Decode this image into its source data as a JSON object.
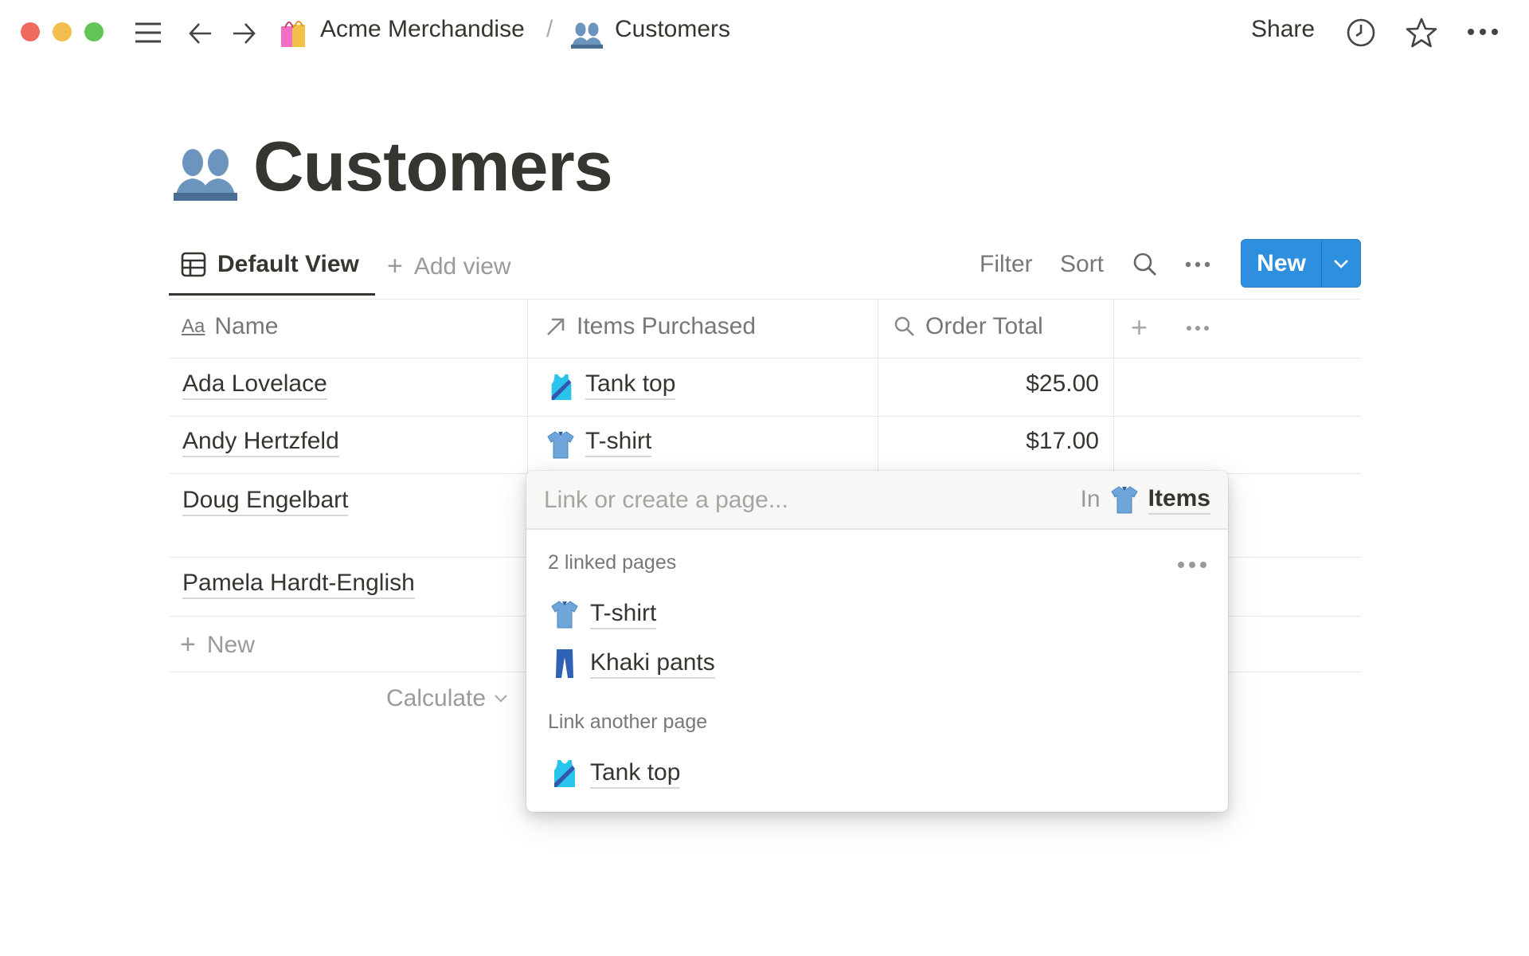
{
  "titlebar": {
    "breadcrumb": [
      {
        "label": "Acme Merchandise",
        "icon": "shopping-bags-icon"
      },
      {
        "label": "Customers",
        "icon": "busts-icon"
      }
    ],
    "separator": "/",
    "share": "Share"
  },
  "page": {
    "title": "Customers",
    "icon": "busts-icon"
  },
  "views": {
    "active": "Default View",
    "add": "Add view"
  },
  "toolbar": {
    "filter": "Filter",
    "sort": "Sort",
    "new": "New",
    "accent": "#2f8fdf"
  },
  "table": {
    "columns": [
      {
        "label": "Name",
        "icon": "text-icon"
      },
      {
        "label": "Items Purchased",
        "icon": "relation-arrow-icon"
      },
      {
        "label": "Order Total",
        "icon": "search-icon"
      }
    ],
    "rows": [
      {
        "name": "Ada Lovelace",
        "item": "Tank top",
        "item_icon": "tank-top-icon",
        "total": "$25.00"
      },
      {
        "name": "Andy Hertzfeld",
        "item": "T-shirt",
        "item_icon": "tshirt-icon",
        "total": "$17.00"
      },
      {
        "name": "Doug Engelbart",
        "item": "",
        "total": ""
      },
      {
        "name": "Pamela Hardt-English",
        "item": "",
        "total": ""
      }
    ],
    "new": "New",
    "calculate": "Calculate"
  },
  "popup": {
    "placeholder": "Link or create a page...",
    "in_label": "In",
    "database": "Items",
    "linked_header": "2 linked pages",
    "linked": [
      {
        "label": "T-shirt",
        "icon": "tshirt-icon"
      },
      {
        "label": "Khaki pants",
        "icon": "jeans-icon"
      }
    ],
    "another_header": "Link another page",
    "another": [
      {
        "label": "Tank top",
        "icon": "tank-top-icon"
      }
    ]
  }
}
